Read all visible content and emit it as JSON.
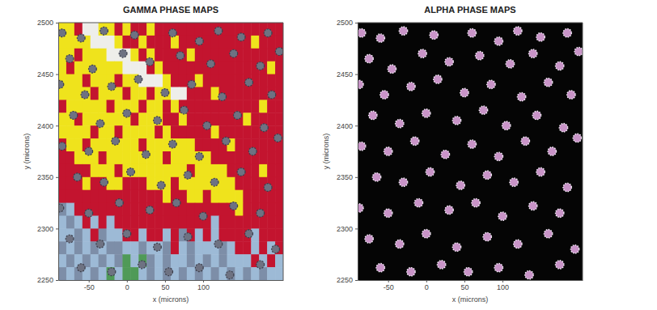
{
  "chart_data": [
    {
      "type": "heatmap",
      "title": "GAMMA PHASE MAPS",
      "x_label": "x (microns)",
      "y_label": "y (microns)",
      "xlim": [
        -90,
        205
      ],
      "ylim": [
        2250,
        2500
      ],
      "xticks": [
        -50,
        0,
        50,
        100
      ],
      "yticks": [
        2250,
        2300,
        2350,
        2400,
        2450,
        2500
      ],
      "colors": [
        "#efe31c",
        "#c3142f",
        "#9dbad6",
        "#7d8ea8",
        "#eeeeea",
        "#4f9a57"
      ],
      "cells": [
        [
          0,
          0,
          1,
          4,
          4,
          0,
          0,
          1,
          0,
          1,
          1,
          0,
          1,
          1,
          1,
          1,
          1,
          1,
          1,
          1,
          1,
          1,
          1,
          1,
          1,
          1,
          1,
          1
        ],
        [
          0,
          0,
          0,
          0,
          4,
          4,
          4,
          0,
          1,
          1,
          0,
          1,
          1,
          1,
          0,
          1,
          1,
          1,
          1,
          1,
          1,
          1,
          1,
          1,
          0,
          1,
          1,
          1
        ],
        [
          0,
          0,
          1,
          0,
          0,
          0,
          4,
          4,
          4,
          0,
          1,
          0,
          1,
          1,
          1,
          1,
          0,
          1,
          1,
          1,
          1,
          1,
          1,
          1,
          1,
          1,
          1,
          1
        ],
        [
          0,
          1,
          0,
          0,
          0,
          0,
          0,
          0,
          4,
          4,
          4,
          1,
          0,
          1,
          1,
          1,
          1,
          1,
          1,
          1,
          1,
          1,
          1,
          1,
          1,
          1,
          0,
          1
        ],
        [
          0,
          0,
          0,
          1,
          0,
          0,
          0,
          1,
          0,
          0,
          4,
          4,
          4,
          0,
          1,
          1,
          1,
          0,
          1,
          1,
          1,
          1,
          1,
          1,
          1,
          1,
          1,
          1
        ],
        [
          0,
          0,
          0,
          0,
          1,
          0,
          0,
          0,
          1,
          0,
          0,
          1,
          0,
          0,
          4,
          4,
          1,
          1,
          1,
          0,
          1,
          1,
          1,
          1,
          1,
          1,
          1,
          1
        ],
        [
          1,
          0,
          0,
          0,
          0,
          0,
          1,
          0,
          0,
          0,
          1,
          0,
          0,
          1,
          0,
          1,
          1,
          1,
          1,
          1,
          1,
          1,
          1,
          1,
          1,
          0,
          1,
          1
        ],
        [
          0,
          0,
          1,
          0,
          0,
          0,
          0,
          0,
          0,
          1,
          0,
          0,
          0,
          1,
          1,
          0,
          1,
          1,
          1,
          1,
          1,
          1,
          1,
          0,
          1,
          1,
          1,
          1
        ],
        [
          0,
          0,
          0,
          0,
          1,
          0,
          0,
          1,
          0,
          0,
          0,
          0,
          1,
          0,
          1,
          1,
          1,
          1,
          1,
          0,
          1,
          1,
          1,
          1,
          1,
          1,
          1,
          1
        ],
        [
          1,
          0,
          0,
          1,
          0,
          0,
          0,
          0,
          0,
          0,
          1,
          0,
          0,
          0,
          0,
          0,
          0,
          1,
          1,
          1,
          1,
          0,
          1,
          1,
          1,
          1,
          1,
          1
        ],
        [
          1,
          1,
          0,
          0,
          0,
          1,
          0,
          0,
          0,
          0,
          0,
          0,
          0,
          1,
          0,
          0,
          0,
          0,
          0,
          1,
          1,
          1,
          1,
          1,
          1,
          1,
          1,
          1
        ],
        [
          1,
          1,
          1,
          1,
          0,
          0,
          0,
          1,
          0,
          0,
          0,
          0,
          0,
          0,
          0,
          0,
          1,
          0,
          0,
          0,
          0,
          1,
          1,
          1,
          1,
          0,
          1,
          1
        ],
        [
          1,
          1,
          1,
          0,
          1,
          1,
          0,
          0,
          1,
          1,
          1,
          0,
          0,
          0,
          1,
          0,
          0,
          0,
          0,
          0,
          0,
          0,
          1,
          1,
          1,
          1,
          1,
          1
        ],
        [
          1,
          1,
          1,
          1,
          1,
          1,
          1,
          1,
          1,
          1,
          1,
          1,
          1,
          0,
          1,
          1,
          0,
          0,
          1,
          0,
          0,
          0,
          0,
          1,
          1,
          1,
          1,
          1
        ],
        [
          3,
          2,
          1,
          1,
          1,
          1,
          1,
          1,
          1,
          1,
          1,
          1,
          1,
          1,
          1,
          1,
          1,
          1,
          1,
          1,
          1,
          1,
          0,
          1,
          1,
          1,
          1,
          1
        ],
        [
          2,
          3,
          2,
          1,
          2,
          1,
          2,
          1,
          1,
          1,
          1,
          1,
          1,
          1,
          1,
          1,
          1,
          1,
          1,
          2,
          1,
          1,
          1,
          1,
          1,
          1,
          1,
          1
        ],
        [
          2,
          2,
          3,
          2,
          1,
          3,
          2,
          2,
          1,
          1,
          2,
          1,
          1,
          2,
          1,
          3,
          1,
          2,
          1,
          2,
          1,
          1,
          1,
          1,
          2,
          1,
          1,
          1
        ],
        [
          3,
          2,
          3,
          2,
          3,
          2,
          3,
          3,
          2,
          2,
          3,
          2,
          2,
          3,
          1,
          2,
          3,
          2,
          2,
          2,
          3,
          2,
          1,
          1,
          2,
          1,
          2,
          1
        ],
        [
          2,
          3,
          2,
          3,
          2,
          3,
          2,
          3,
          5,
          2,
          5,
          3,
          2,
          3,
          2,
          2,
          3,
          2,
          3,
          2,
          3,
          2,
          2,
          2,
          1,
          2,
          1,
          2
        ],
        [
          3,
          2,
          3,
          2,
          3,
          2,
          5,
          2,
          5,
          5,
          2,
          3,
          2,
          3,
          2,
          3,
          2,
          3,
          2,
          3,
          2,
          3,
          2,
          3,
          2,
          3,
          2,
          2
        ]
      ],
      "series": [
        {
          "type": "scatter",
          "color": "#6e7282",
          "marker": "circle",
          "x": [
            -85,
            -60,
            -30,
            10,
            60,
            95,
            120,
            150,
            185,
            -75,
            -45,
            -5,
            30,
            70,
            110,
            140,
            175,
            200,
            -88,
            -55,
            -20,
            15,
            50,
            85,
            125,
            160,
            190,
            -70,
            -35,
            0,
            40,
            75,
            105,
            145,
            180,
            -85,
            -50,
            -15,
            25,
            60,
            95,
            130,
            165,
            198,
            -65,
            -30,
            5,
            45,
            80,
            115,
            150,
            185,
            -88,
            -50,
            -10,
            30,
            65,
            100,
            140,
            175,
            -75,
            -35,
            0,
            40,
            80,
            120,
            160,
            195,
            -60,
            -20,
            20,
            55,
            95,
            135,
            175
          ],
          "y": [
            2490,
            2485,
            2492,
            2488,
            2490,
            2482,
            2492,
            2486,
            2490,
            2465,
            2455,
            2470,
            2462,
            2468,
            2460,
            2470,
            2458,
            2472,
            2440,
            2430,
            2438,
            2445,
            2432,
            2440,
            2428,
            2442,
            2430,
            2410,
            2402,
            2412,
            2405,
            2415,
            2400,
            2410,
            2398,
            2380,
            2375,
            2385,
            2372,
            2382,
            2370,
            2385,
            2375,
            2388,
            2350,
            2345,
            2355,
            2342,
            2352,
            2345,
            2355,
            2340,
            2320,
            2315,
            2325,
            2318,
            2325,
            2312,
            2322,
            2315,
            2290,
            2285,
            2295,
            2282,
            2292,
            2285,
            2295,
            2280,
            2262,
            2258,
            2265,
            2258,
            2262,
            2255,
            2265
          ]
        }
      ]
    },
    {
      "type": "scatter",
      "title": "ALPHA PHASE MAPS",
      "x_label": "x (microns)",
      "y_label": "y (microns)",
      "xlim": [
        -90,
        205
      ],
      "ylim": [
        2250,
        2500
      ],
      "xticks": [
        -50,
        0,
        50,
        100
      ],
      "yticks": [
        2250,
        2300,
        2350,
        2400,
        2450,
        2500
      ],
      "series": [
        {
          "color": "#c994c8",
          "marker": "circle",
          "x": [
            -85,
            -60,
            -30,
            10,
            60,
            95,
            120,
            150,
            185,
            -75,
            -45,
            -5,
            30,
            70,
            110,
            140,
            175,
            200,
            -88,
            -55,
            -20,
            15,
            50,
            85,
            125,
            160,
            190,
            -70,
            -35,
            0,
            40,
            75,
            105,
            145,
            180,
            -85,
            -50,
            -15,
            25,
            60,
            95,
            130,
            165,
            198,
            -65,
            -30,
            5,
            45,
            80,
            115,
            150,
            185,
            -88,
            -50,
            -10,
            30,
            65,
            100,
            140,
            175,
            -75,
            -35,
            0,
            40,
            80,
            120,
            160,
            195,
            -60,
            -20,
            20,
            55,
            95,
            135,
            175
          ],
          "y": [
            2490,
            2485,
            2492,
            2488,
            2490,
            2482,
            2492,
            2486,
            2490,
            2465,
            2455,
            2470,
            2462,
            2468,
            2460,
            2470,
            2458,
            2472,
            2440,
            2430,
            2438,
            2445,
            2432,
            2440,
            2428,
            2442,
            2430,
            2410,
            2402,
            2412,
            2405,
            2415,
            2400,
            2410,
            2398,
            2380,
            2375,
            2385,
            2372,
            2382,
            2370,
            2385,
            2375,
            2388,
            2350,
            2345,
            2355,
            2342,
            2352,
            2345,
            2355,
            2340,
            2320,
            2315,
            2325,
            2318,
            2325,
            2312,
            2322,
            2315,
            2290,
            2285,
            2295,
            2282,
            2292,
            2285,
            2295,
            2280,
            2262,
            2258,
            2265,
            2258,
            2262,
            2255,
            2265
          ]
        }
      ]
    }
  ]
}
